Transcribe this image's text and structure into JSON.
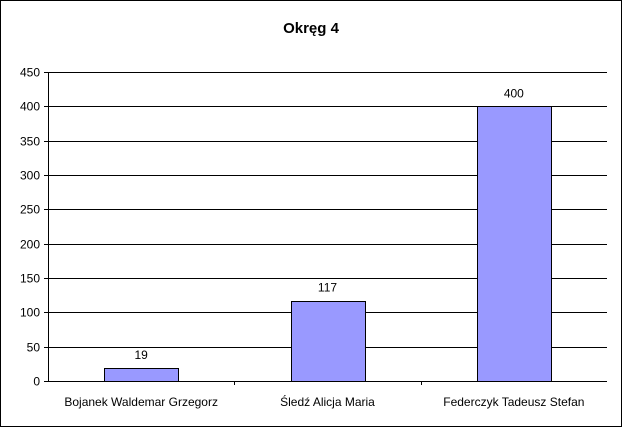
{
  "chart_data": {
    "type": "bar",
    "title": "Okręg 4",
    "categories": [
      "Bojanek Waldemar Grzegorz",
      "Śledź Alicja Maria",
      "Federczyk Tadeusz Stefan"
    ],
    "values": [
      19,
      117,
      400
    ],
    "data_labels": [
      "19",
      "117",
      "400"
    ],
    "ylim": [
      0,
      450
    ],
    "yticks": [
      0,
      50,
      100,
      150,
      200,
      250,
      300,
      350,
      400,
      450
    ],
    "grid": true,
    "legend": "none",
    "bar_color": "#9999ff",
    "bar_border_color": "#000000"
  }
}
